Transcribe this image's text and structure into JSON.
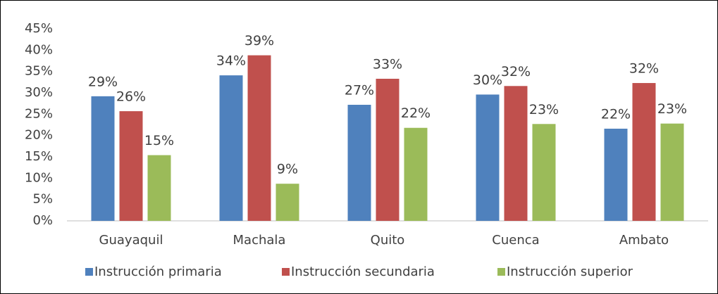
{
  "chart_data": {
    "type": "bar",
    "categories": [
      "Guayaquil",
      "Machala",
      "Quito",
      "Cuenca",
      "Ambato"
    ],
    "series": [
      {
        "name": "Instrucción primaria",
        "color": "#4f81bd",
        "values": [
          29.2,
          34.1,
          27.2,
          29.6,
          21.6
        ],
        "value_labels": [
          "29%",
          "34%",
          "27%",
          "30%",
          "22%"
        ]
      },
      {
        "name": "Instrucción secundaria",
        "color": "#c0504d",
        "values": [
          25.7,
          38.8,
          33.3,
          31.6,
          32.3
        ],
        "value_labels": [
          "26%",
          "39%",
          "33%",
          "32%",
          "32%"
        ]
      },
      {
        "name": "Instrucción superior",
        "color": "#9bbb59",
        "values": [
          15.4,
          8.7,
          21.8,
          22.7,
          22.8
        ],
        "value_labels": [
          "15%",
          "9%",
          "22%",
          "23%",
          "23%"
        ]
      }
    ],
    "ylim": [
      0,
      45
    ],
    "yticks": [
      {
        "value": 0,
        "label": "0%"
      },
      {
        "value": 5,
        "label": "5%"
      },
      {
        "value": 10,
        "label": "10%"
      },
      {
        "value": 15,
        "label": "15%"
      },
      {
        "value": 20,
        "label": "20%"
      },
      {
        "value": 25,
        "label": "25%"
      },
      {
        "value": 30,
        "label": "30%"
      },
      {
        "value": 35,
        "label": "35%"
      },
      {
        "value": 40,
        "label": "40%"
      },
      {
        "value": 45,
        "label": "45%"
      }
    ],
    "grid": false,
    "legend": "bottom"
  }
}
